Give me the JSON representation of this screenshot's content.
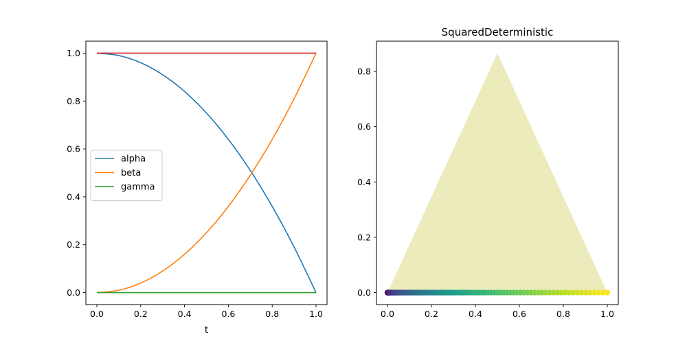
{
  "chart_data": [
    {
      "type": "line",
      "title": "",
      "xlabel": "t",
      "ylabel": "",
      "xlim": [
        -0.05,
        1.05
      ],
      "ylim": [
        -0.05,
        1.05
      ],
      "xticks": [
        0.0,
        0.2,
        0.4,
        0.6,
        0.8,
        1.0
      ],
      "yticks": [
        0.0,
        0.2,
        0.4,
        0.6,
        0.8,
        1.0
      ],
      "xtick_labels": [
        "0.0",
        "0.2",
        "0.4",
        "0.6",
        "0.8",
        "1.0"
      ],
      "ytick_labels": [
        "0.0",
        "0.2",
        "0.4",
        "0.6",
        "0.8",
        "1.0"
      ],
      "legend_position": "center-left",
      "grid": false,
      "x": [
        0.0,
        0.1,
        0.2,
        0.3,
        0.4,
        0.5,
        0.6,
        0.7,
        0.8,
        0.9,
        1.0
      ],
      "series": [
        {
          "name": "alpha",
          "color": "#1f77b4",
          "values": [
            1.0,
            0.99,
            0.96,
            0.91,
            0.84,
            0.75,
            0.64,
            0.51,
            0.36,
            0.19,
            0.0
          ],
          "in_legend": true
        },
        {
          "name": "beta",
          "color": "#ff7f0e",
          "values": [
            0.0,
            0.01,
            0.04,
            0.09,
            0.16,
            0.25,
            0.36,
            0.49,
            0.64,
            0.81,
            1.0
          ],
          "in_legend": true
        },
        {
          "name": "gamma",
          "color": "#2ca02c",
          "values": [
            0.0,
            0.0,
            0.0,
            0.0,
            0.0,
            0.0,
            0.0,
            0.0,
            0.0,
            0.0,
            0.0
          ],
          "in_legend": true
        },
        {
          "name": "",
          "color": "#d62728",
          "values": [
            1.0,
            1.0,
            1.0,
            1.0,
            1.0,
            1.0,
            1.0,
            1.0,
            1.0,
            1.0,
            1.0
          ],
          "in_legend": false
        }
      ]
    },
    {
      "type": "scatter",
      "title": "SquaredDeterministic",
      "xlabel": "",
      "ylabel": "",
      "xlim": [
        -0.05,
        1.05
      ],
      "ylim": [
        -0.0433,
        0.9093
      ],
      "xticks": [
        0.0,
        0.2,
        0.4,
        0.6,
        0.8,
        1.0
      ],
      "yticks": [
        0.0,
        0.2,
        0.4,
        0.6,
        0.8
      ],
      "xtick_labels": [
        "0.0",
        "0.2",
        "0.4",
        "0.6",
        "0.8",
        "1.0"
      ],
      "ytick_labels": [
        "0.0",
        "0.2",
        "0.4",
        "0.6",
        "0.8"
      ],
      "grid": false,
      "simplex_vertices": [
        [
          0.0,
          0.0
        ],
        [
          1.0,
          0.0
        ],
        [
          0.5,
          0.866
        ]
      ],
      "simplex_color": "#bcbd22",
      "simplex_alpha": 0.3,
      "points_y": 0.0,
      "points_x_range": [
        0.0,
        1.0
      ],
      "points_count": 100,
      "colormap": "viridis"
    }
  ]
}
